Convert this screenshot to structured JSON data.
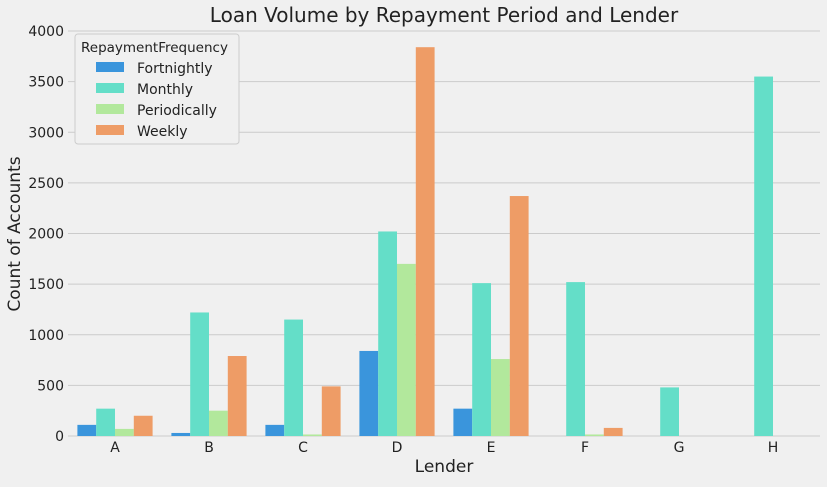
{
  "chart_data": {
    "type": "bar",
    "title": "Loan Volume by Repayment Period and Lender",
    "xlabel": "Lender",
    "ylabel": "Count of Accounts",
    "categories": [
      "A",
      "B",
      "C",
      "D",
      "E",
      "F",
      "G",
      "H"
    ],
    "ylim": [
      0,
      4000
    ],
    "yticks": [
      0,
      500,
      1000,
      1500,
      2000,
      2500,
      3000,
      3500,
      4000
    ],
    "grid": true,
    "legend": {
      "title": "RepaymentFrequency",
      "placement": "top-left"
    },
    "series": [
      {
        "name": "Fortnightly",
        "color": "#3a95dc",
        "values": [
          110,
          30,
          110,
          840,
          270,
          0,
          0,
          0
        ]
      },
      {
        "name": "Monthly",
        "color": "#64dec8",
        "values": [
          270,
          1220,
          1150,
          2020,
          1510,
          1520,
          480,
          3550
        ]
      },
      {
        "name": "Periodically",
        "color": "#b2e89c",
        "values": [
          70,
          250,
          15,
          1700,
          760,
          15,
          0,
          0
        ]
      },
      {
        "name": "Weekly",
        "color": "#ee9c66",
        "values": [
          200,
          790,
          490,
          3840,
          2370,
          80,
          0,
          0
        ]
      }
    ]
  }
}
